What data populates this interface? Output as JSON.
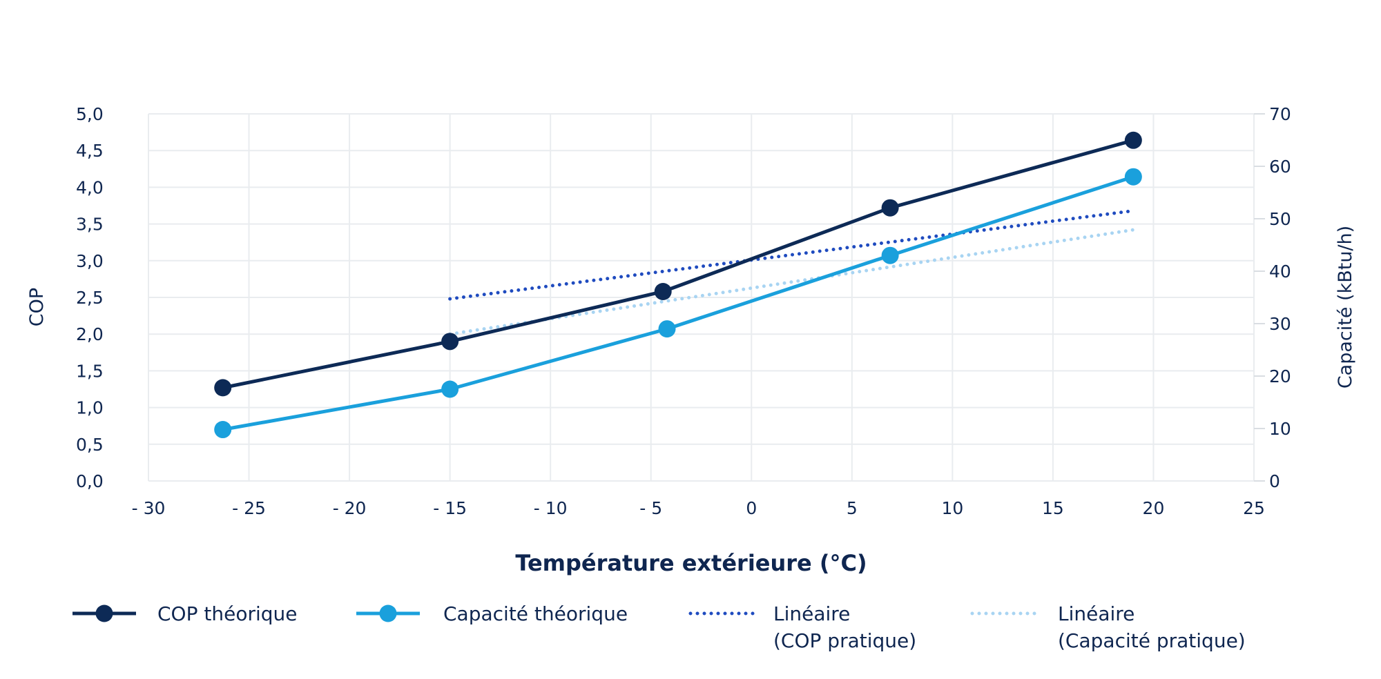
{
  "chart_data": {
    "type": "line",
    "title": "",
    "xlabel": "Température extérieure (°C)",
    "ylabel": "COP",
    "y2label": "Capacité (kBtu/h)",
    "xlim": [
      -30,
      25
    ],
    "ylim": [
      0,
      5
    ],
    "y2lim": [
      0,
      70
    ],
    "x_ticks": [
      "- 30",
      "- 25",
      "- 20",
      "- 15",
      "- 10",
      "- 5",
      "0",
      "5",
      "10",
      "15",
      "20",
      "25"
    ],
    "y_ticks": [
      "0,0",
      "0,5",
      "1,0",
      "1,5",
      "2,0",
      "2,5",
      "3,0",
      "3,5",
      "4,0",
      "4,5",
      "5,0"
    ],
    "y2_ticks": [
      "0",
      "10",
      "20",
      "30",
      "40",
      "50",
      "60",
      "70"
    ],
    "grid": true,
    "legend_position": "bottom",
    "series": [
      {
        "name": "COP théorique",
        "axis": "left",
        "style": "solid-markers",
        "color": "#0d2a56",
        "x": [
          -26.3,
          -15,
          -4.4,
          6.9,
          19
        ],
        "y": [
          1.27,
          1.9,
          2.58,
          3.72,
          4.64
        ]
      },
      {
        "name": "Capacité théorique",
        "axis": "right",
        "style": "solid-markers",
        "color": "#1aa0dc",
        "x": [
          -26.3,
          -15,
          -4.2,
          6.9,
          19
        ],
        "y": [
          9.8,
          17.5,
          29,
          43,
          58
        ]
      },
      {
        "name": "Linéaire\n(COP pratique)",
        "axis": "left",
        "style": "dotted",
        "color": "#1f4bbf",
        "x": [
          -15,
          19
        ],
        "y": [
          2.48,
          3.68
        ]
      },
      {
        "name": "Linéaire\n(Capacité pratique)",
        "axis": "left",
        "style": "dotted",
        "color": "#a8d4f2",
        "x": [
          -15,
          19
        ],
        "y": [
          2.0,
          3.42
        ]
      }
    ]
  }
}
